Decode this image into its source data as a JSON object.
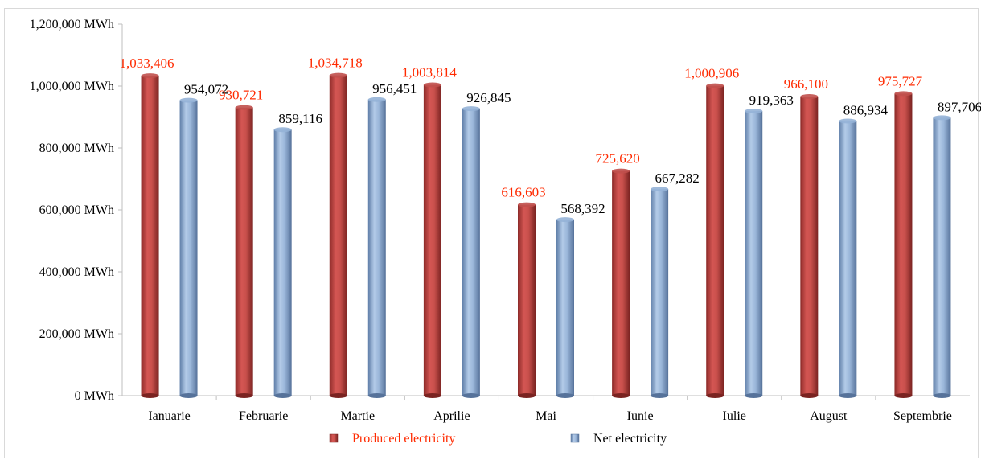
{
  "chart_data": {
    "type": "bar",
    "categories": [
      "Ianuarie",
      "Februarie",
      "Martie",
      "Aprilie",
      "Mai",
      "Iunie",
      "Iulie",
      "August",
      "Septembrie"
    ],
    "series": [
      {
        "name": "Produced electricity",
        "color": "#c0504d",
        "label_color": "#ff2a00",
        "values": [
          1033406,
          930721,
          1034718,
          1003814,
          616603,
          725620,
          1000906,
          966100,
          975727
        ],
        "labels": [
          "1,033,406",
          "930,721",
          "1,034,718",
          "1,003,814",
          "616,603",
          "725,620",
          "1,000,906",
          "966,100",
          "975,727"
        ]
      },
      {
        "name": "Net electricity",
        "color": "#95b3d7",
        "label_color": "#000000",
        "values": [
          954072,
          859116,
          956451,
          926845,
          568392,
          667282,
          919363,
          886934,
          897706
        ],
        "labels": [
          "954,072",
          "859,116",
          "956,451",
          "926,845",
          "568,392",
          "667,282",
          "919,363",
          "886,934",
          "897,706"
        ]
      }
    ],
    "ylim": [
      0,
      1200000
    ],
    "yticks": [
      0,
      200000,
      400000,
      600000,
      800000,
      1000000,
      1200000
    ],
    "ytick_labels": [
      "0 MWh",
      "200,000 MWh",
      "400,000 MWh",
      "600,000 MWh",
      "800,000 MWh",
      "1,000,000 MWh",
      "1,200,000 MWh"
    ],
    "grid": false,
    "legend_position": "bottom"
  }
}
